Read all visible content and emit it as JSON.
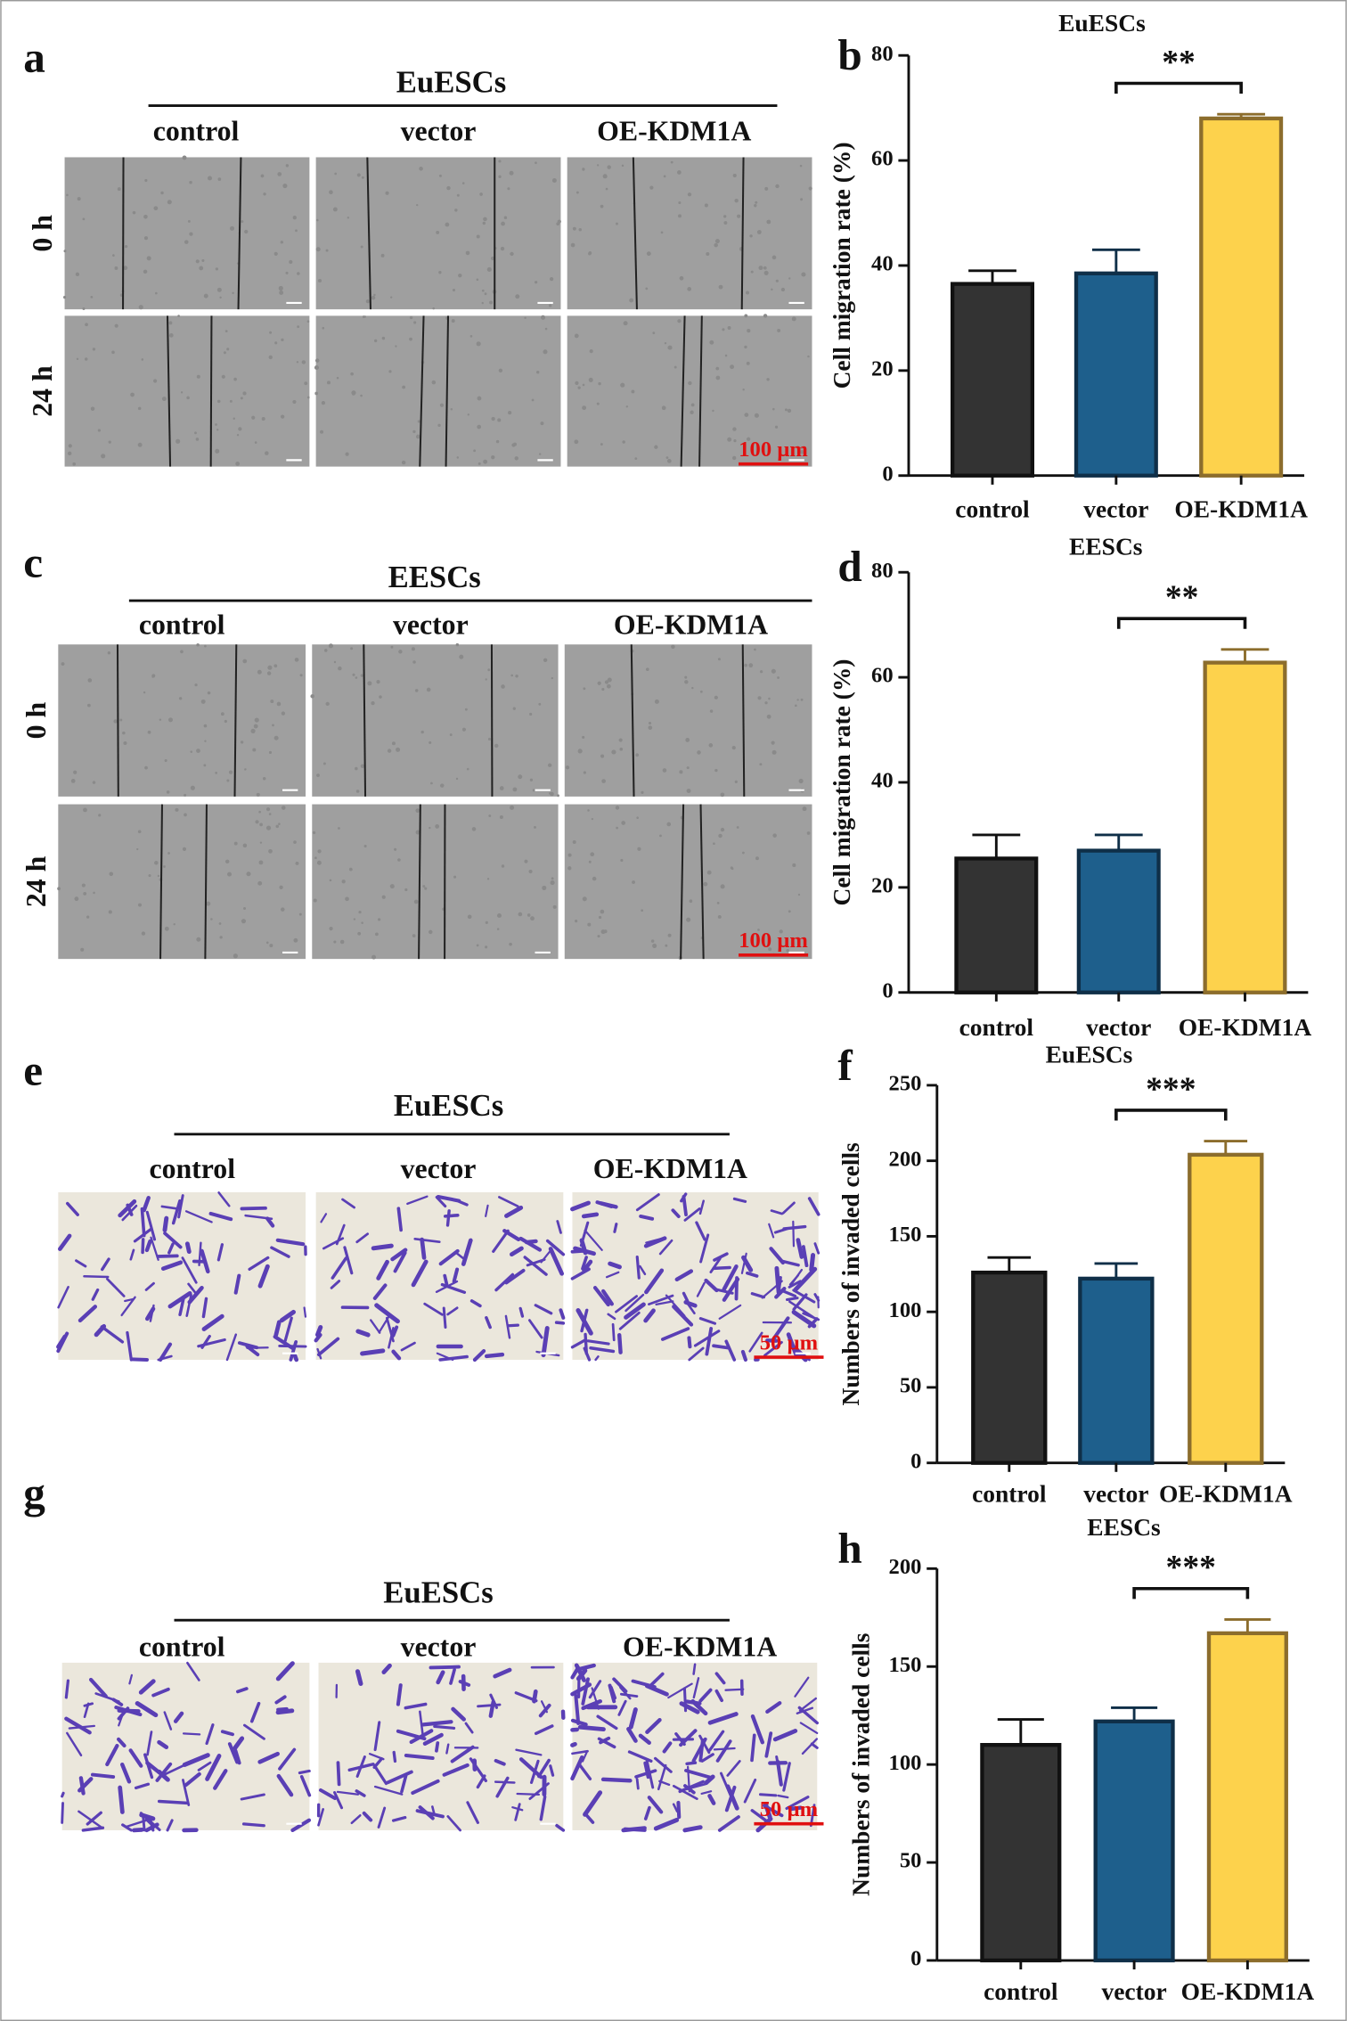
{
  "panels": [
    {
      "label": "a",
      "title": "EuESCs",
      "columns": [
        "control",
        "vector",
        "OE-KDM1A"
      ],
      "rows": [
        "0 h",
        "24 h"
      ],
      "scale_bar": "100 µm"
    },
    {
      "label": "c",
      "title": "EESCs",
      "columns": [
        "control",
        "vector",
        "OE-KDM1A"
      ],
      "rows": [
        "0 h",
        "24 h"
      ],
      "scale_bar": "100 µm"
    },
    {
      "label": "e",
      "title": "EuESCs",
      "columns": [
        "control",
        "vector",
        "OE-KDM1A"
      ],
      "scale_bar": "50 µm"
    },
    {
      "label": "g",
      "title": "EuESCs",
      "columns": [
        "control",
        "vector",
        "OE-KDM1A"
      ],
      "scale_bar": "50 µm"
    }
  ],
  "chart_data": [
    {
      "type": "bar",
      "label": "b",
      "title": "EuESCs",
      "y_label": "Cell migration rate (%)",
      "categories": [
        "control",
        "vector",
        "OE-KDM1A"
      ],
      "values": [
        36.5,
        38.5,
        68
      ],
      "errors": [
        2.5,
        4.5,
        0.8
      ],
      "colors": [
        "#333333",
        "#1e5f8c",
        "#fdd24c"
      ],
      "edge_colors": [
        "#111111",
        "#0f2f48",
        "#8c6d2c"
      ],
      "ylim": [
        0,
        80
      ],
      "yticks": [
        0,
        20,
        40,
        60,
        80
      ],
      "annotation": "**"
    },
    {
      "type": "bar",
      "label": "d",
      "title": "EESCs",
      "y_label": "Cell migration rate (%)",
      "categories": [
        "control",
        "vector",
        "OE-KDM1A"
      ],
      "values": [
        25.5,
        27,
        62.8
      ],
      "errors": [
        4.5,
        3,
        2.5
      ],
      "colors": [
        "#333333",
        "#1e5f8c",
        "#fdd24c"
      ],
      "edge_colors": [
        "#111111",
        "#0f2f48",
        "#8c6d2c"
      ],
      "ylim": [
        0,
        80
      ],
      "yticks": [
        0,
        20,
        40,
        60,
        80
      ],
      "annotation": "**"
    },
    {
      "type": "bar",
      "label": "f",
      "title": "EuESCs",
      "y_label": "Numbers of invaded cells",
      "categories": [
        "control",
        "vector",
        "OE-KDM1A"
      ],
      "values": [
        126,
        122,
        204
      ],
      "errors": [
        10,
        10,
        9
      ],
      "colors": [
        "#333333",
        "#1e5f8c",
        "#fdd24c"
      ],
      "edge_colors": [
        "#111111",
        "#0f2f48",
        "#8c6d2c"
      ],
      "ylim": [
        0,
        250
      ],
      "yticks": [
        0,
        50,
        100,
        150,
        200,
        250
      ],
      "annotation": "***"
    },
    {
      "type": "bar",
      "label": "h",
      "title": "EESCs",
      "y_label": "Numbers of invaded cells",
      "categories": [
        "control",
        "vector",
        "OE-KDM1A"
      ],
      "values": [
        110,
        122,
        167
      ],
      "errors": [
        13,
        7,
        7
      ],
      "colors": [
        "#333333",
        "#1e5f8c",
        "#fdd24c"
      ],
      "edge_colors": [
        "#111111",
        "#0f2f48",
        "#8c6d2c"
      ],
      "ylim": [
        0,
        200
      ],
      "yticks": [
        0,
        50,
        100,
        150,
        200
      ],
      "annotation": "***"
    }
  ]
}
